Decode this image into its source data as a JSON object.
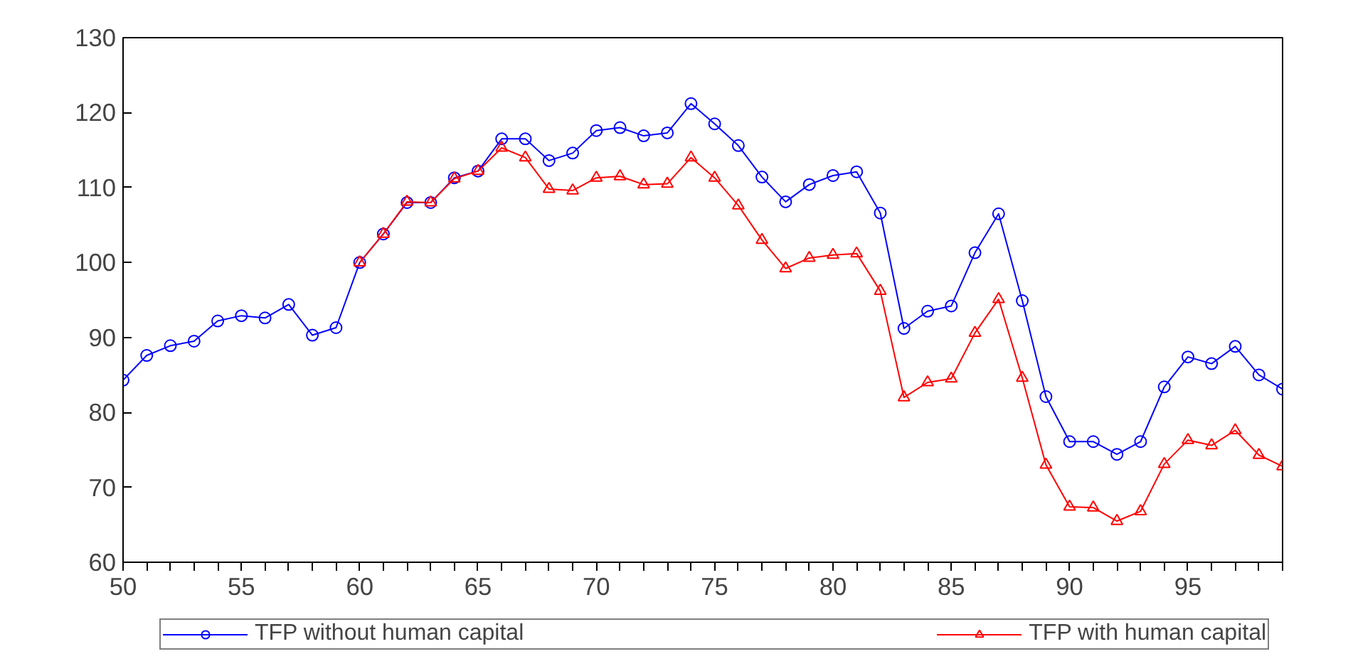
{
  "chart_data": {
    "type": "line",
    "x": [
      50,
      51,
      52,
      53,
      54,
      55,
      56,
      57,
      58,
      59,
      60,
      61,
      62,
      63,
      64,
      65,
      66,
      67,
      68,
      69,
      70,
      71,
      72,
      73,
      74,
      75,
      76,
      77,
      78,
      79,
      80,
      81,
      82,
      83,
      84,
      85,
      86,
      87,
      88,
      89,
      90,
      91,
      92,
      93,
      94,
      95,
      96,
      97,
      98,
      99
    ],
    "series": [
      {
        "name": "TFP without human capital",
        "color": "#0000ff",
        "marker": "circle",
        "values": [
          84.3,
          87.6,
          88.9,
          89.5,
          92.2,
          92.9,
          92.6,
          94.4,
          90.3,
          91.3,
          100,
          103.8,
          108,
          108,
          111.3,
          112.2,
          116.5,
          116.5,
          113.6,
          114.6,
          117.6,
          118,
          116.9,
          117.3,
          121.2,
          118.5,
          115.6,
          111.4,
          108.1,
          110.4,
          111.6,
          112.1,
          106.6,
          91.2,
          93.5,
          94.2,
          101.3,
          106.5,
          94.9,
          82.1,
          76.1,
          76.1,
          74.4,
          76.1,
          83.4,
          87.4,
          86.5,
          88.8,
          85,
          83.1
        ]
      },
      {
        "name": "TFP with human capital",
        "color": "#ff0000",
        "marker": "triangle",
        "values": [
          null,
          null,
          null,
          null,
          null,
          null,
          null,
          null,
          null,
          null,
          100,
          103.8,
          108.1,
          108,
          111.2,
          112.2,
          115.3,
          114,
          109.8,
          109.6,
          111.3,
          111.5,
          110.4,
          110.5,
          114,
          111.3,
          107.6,
          103,
          99.2,
          100.6,
          101,
          101.2,
          96.2,
          82,
          84,
          84.5,
          90.6,
          95.1,
          84.6,
          73,
          67.4,
          67.3,
          65.5,
          66.8,
          73.1,
          76.3,
          75.6,
          77.6,
          74.3,
          72.8
        ]
      }
    ],
    "xlim": [
      50,
      99
    ],
    "xticks": [
      50,
      {
        "value": 51,
        "label": null
      },
      {
        "value": 52,
        "label": null
      },
      {
        "value": 53,
        "label": null
      },
      {
        "value": 54,
        "label": null
      },
      55,
      {
        "value": 56,
        "label": null
      },
      {
        "value": 57,
        "label": null
      },
      {
        "value": 58,
        "label": null
      },
      {
        "value": 59,
        "label": null
      },
      60,
      {
        "value": 61,
        "label": null
      },
      {
        "value": 62,
        "label": null
      },
      {
        "value": 63,
        "label": null
      },
      {
        "value": 64,
        "label": null
      },
      65,
      {
        "value": 66,
        "label": null
      },
      {
        "value": 67,
        "label": null
      },
      {
        "value": 68,
        "label": null
      },
      {
        "value": 69,
        "label": null
      },
      70,
      {
        "value": 71,
        "label": null
      },
      {
        "value": 72,
        "label": null
      },
      {
        "value": 73,
        "label": null
      },
      {
        "value": 74,
        "label": null
      },
      75,
      {
        "value": 76,
        "label": null
      },
      {
        "value": 77,
        "label": null
      },
      {
        "value": 78,
        "label": null
      },
      {
        "value": 79,
        "label": null
      },
      80,
      {
        "value": 81,
        "label": null
      },
      {
        "value": 82,
        "label": null
      },
      {
        "value": 83,
        "label": null
      },
      {
        "value": 84,
        "label": null
      },
      85,
      {
        "value": 86,
        "label": null
      },
      {
        "value": 87,
        "label": null
      },
      {
        "value": 88,
        "label": null
      },
      {
        "value": 89,
        "label": null
      },
      90,
      {
        "value": 91,
        "label": null
      },
      {
        "value": 92,
        "label": null
      },
      {
        "value": 93,
        "label": null
      },
      {
        "value": 94,
        "label": null
      },
      95,
      {
        "value": 96,
        "label": null
      },
      {
        "value": 97,
        "label": null
      },
      {
        "value": 98,
        "label": null
      },
      {
        "value": 99,
        "label": null
      }
    ],
    "ylim": [
      60,
      130
    ],
    "yticks": [
      60,
      70,
      80,
      90,
      100,
      110,
      120,
      130
    ],
    "grid": false,
    "legend": "bottom",
    "line_style": "solid"
  }
}
